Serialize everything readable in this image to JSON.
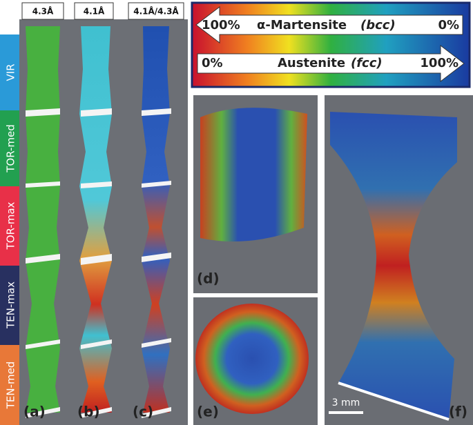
{
  "column_headers": [
    "4.3Å",
    "4.1Å",
    "4.1Å/4.3Å"
  ],
  "side_labels": [
    "VIR",
    "TOR-med",
    "TOR-max",
    "TEN-max",
    "TEN-med"
  ],
  "colorbar": {
    "martensite": {
      "start": "100%",
      "name": "α-Martensite",
      "structure": "(bcc)",
      "end": "0%"
    },
    "austenite": {
      "start": "0%",
      "name": "Austenite",
      "structure": "(fcc)",
      "end": "100%"
    }
  },
  "panel_labels": [
    "(a)",
    "(b)",
    "(c)",
    "(d)",
    "(e)",
    "(f)"
  ],
  "scale_bar": "3 mm"
}
